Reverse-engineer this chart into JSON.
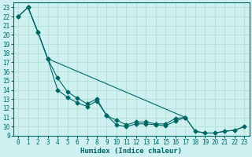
{
  "xlabel": "Humidex (Indice chaleur)",
  "background_color": "#cef0f0",
  "grid_color": "#aaddcc",
  "line_color": "#006666",
  "spine_color": "#006666",
  "xlim": [
    -0.5,
    23.5
  ],
  "ylim": [
    9,
    23.5
  ],
  "xticks": [
    0,
    1,
    2,
    3,
    4,
    5,
    6,
    7,
    8,
    9,
    10,
    11,
    12,
    13,
    14,
    15,
    16,
    17,
    18,
    19,
    20,
    21,
    22,
    23
  ],
  "yticks": [
    9,
    10,
    11,
    12,
    13,
    14,
    15,
    16,
    17,
    18,
    19,
    20,
    21,
    22,
    23
  ],
  "line1_x": [
    0,
    1,
    2,
    3,
    4,
    5,
    6,
    7,
    8,
    9,
    10,
    11,
    12,
    13,
    14,
    15,
    16,
    17,
    18,
    19,
    20,
    21,
    22,
    23
  ],
  "line1_y": [
    22,
    23,
    20.3,
    17.4,
    15.3,
    13.8,
    13.1,
    12.5,
    13.0,
    11.2,
    10.2,
    10.0,
    10.3,
    10.3,
    10.2,
    10.1,
    10.6,
    11.0,
    9.5,
    9.3,
    9.3,
    9.5,
    9.6,
    10.0
  ],
  "line2_x": [
    0,
    1,
    2,
    3,
    4,
    5,
    6,
    7,
    8,
    9,
    10,
    11,
    12,
    13,
    14,
    15,
    16,
    17
  ],
  "line2_y": [
    22,
    23,
    20.3,
    17.4,
    14.0,
    13.2,
    12.6,
    12.2,
    12.8,
    11.2,
    10.7,
    10.2,
    10.5,
    10.5,
    10.3,
    10.3,
    10.9,
    11.0
  ],
  "line3_x": [
    1,
    2,
    3,
    17,
    18,
    19,
    20,
    21,
    22,
    23
  ],
  "line3_y": [
    23,
    20.3,
    17.4,
    11.0,
    9.5,
    9.3,
    9.3,
    9.5,
    9.6,
    10.0
  ],
  "marker": "D",
  "marker_size": 2.5,
  "line_width": 0.8,
  "tick_fontsize": 5.5,
  "xlabel_fontsize": 6.5
}
